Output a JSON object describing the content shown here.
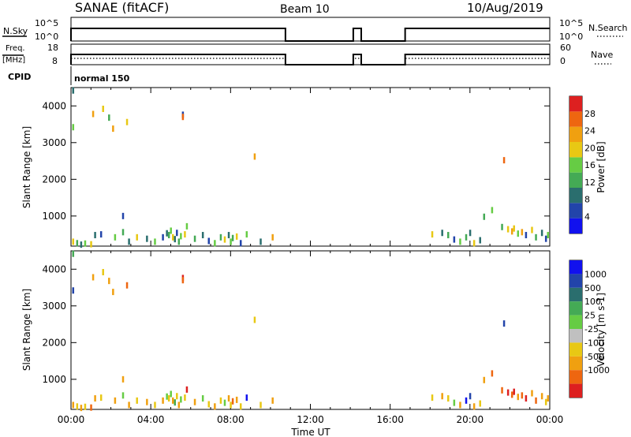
{
  "header": {
    "station": "SANAE (fitACF)",
    "beam": "Beam 10",
    "date": "10/Aug/2019"
  },
  "status_panels": {
    "nsky_label": "N.Sky",
    "nsky_ticks": [
      "10^5",
      "10^0"
    ],
    "nsearch_label": "N.Search",
    "nsearch_ticks": [
      "10^5",
      "10^0"
    ],
    "freq_label_1": "Freq.",
    "freq_label_2": "[MHz]",
    "freq_ticks": [
      "18",
      "8"
    ],
    "nave_label": "Nave",
    "nave_ticks": [
      "60",
      "0"
    ],
    "cpid_label": "CPID",
    "cpid_value": "normal 150",
    "data_gaps_hours": [
      [
        10.75,
        14.15
      ],
      [
        14.55,
        16.75
      ]
    ]
  },
  "colors": {
    "power_scale": [
      "#1111ee",
      "#2244aa",
      "#2a6e6e",
      "#44aa55",
      "#66cc44",
      "#e8c814",
      "#f0a010",
      "#ee6610",
      "#dd2020"
    ],
    "velocity_scale": [
      "#1111ee",
      "#2244aa",
      "#2a6e6e",
      "#44aa55",
      "#66cc44",
      "#c0c0c0",
      "#e8c814",
      "#f0a010",
      "#ee6610",
      "#dd2020"
    ]
  },
  "chart_data": [
    {
      "type": "scatter",
      "name": "power",
      "xlabel": "",
      "ylabel": "Slant Range [km]",
      "xlim": [
        0,
        24
      ],
      "ylim": [
        180,
        4500
      ],
      "yticks": [
        1000,
        2000,
        3000,
        4000
      ],
      "colorbar": {
        "label": "Power [dB]",
        "ticks": [
          4,
          8,
          12,
          16,
          20,
          24,
          28
        ],
        "range": [
          0,
          32
        ]
      },
      "points": [
        [
          0.1,
          4420,
          8
        ],
        [
          0.1,
          3420,
          16
        ],
        [
          1.1,
          3780,
          24
        ],
        [
          1.6,
          3920,
          20
        ],
        [
          1.9,
          3680,
          12
        ],
        [
          2.1,
          3380,
          24
        ],
        [
          2.8,
          3560,
          20
        ],
        [
          5.6,
          3760,
          4
        ],
        [
          5.6,
          3700,
          28
        ],
        [
          2.6,
          1000,
          4
        ],
        [
          9.2,
          2620,
          24
        ],
        [
          21.7,
          2520,
          28
        ],
        [
          21.1,
          1160,
          16
        ],
        [
          20.7,
          980,
          12
        ],
        [
          0.1,
          300,
          20
        ],
        [
          0.3,
          260,
          12
        ],
        [
          0.5,
          220,
          8
        ],
        [
          0.7,
          250,
          16
        ],
        [
          1.0,
          230,
          20
        ],
        [
          1.2,
          480,
          8
        ],
        [
          1.5,
          500,
          4
        ],
        [
          2.2,
          420,
          16
        ],
        [
          2.6,
          560,
          12
        ],
        [
          2.9,
          300,
          8
        ],
        [
          3.3,
          420,
          20
        ],
        [
          3.8,
          380,
          8
        ],
        [
          4.2,
          300,
          16
        ],
        [
          4.6,
          420,
          4
        ],
        [
          4.8,
          530,
          8
        ],
        [
          4.9,
          480,
          12
        ],
        [
          5.0,
          600,
          16
        ],
        [
          5.1,
          420,
          20
        ],
        [
          5.2,
          370,
          8
        ],
        [
          5.3,
          540,
          4
        ],
        [
          5.4,
          300,
          12
        ],
        [
          5.5,
          450,
          16
        ],
        [
          5.7,
          500,
          20
        ],
        [
          5.8,
          720,
          16
        ],
        [
          6.2,
          380,
          12
        ],
        [
          6.6,
          480,
          8
        ],
        [
          6.9,
          320,
          4
        ],
        [
          7.2,
          260,
          16
        ],
        [
          7.5,
          420,
          12
        ],
        [
          7.7,
          360,
          20
        ],
        [
          7.9,
          480,
          8
        ],
        [
          8.0,
          300,
          16
        ],
        [
          8.1,
          400,
          12
        ],
        [
          8.3,
          440,
          20
        ],
        [
          8.5,
          260,
          4
        ],
        [
          8.8,
          500,
          16
        ],
        [
          9.5,
          300,
          8
        ],
        [
          10.1,
          420,
          24
        ],
        [
          18.1,
          500,
          20
        ],
        [
          18.6,
          540,
          8
        ],
        [
          18.9,
          480,
          12
        ],
        [
          19.2,
          360,
          4
        ],
        [
          19.5,
          300,
          16
        ],
        [
          19.8,
          420,
          12
        ],
        [
          20.0,
          540,
          8
        ],
        [
          20.2,
          260,
          20
        ],
        [
          20.5,
          340,
          8
        ],
        [
          21.6,
          700,
          12
        ],
        [
          21.9,
          640,
          20
        ],
        [
          22.1,
          580,
          24
        ],
        [
          22.2,
          660,
          20
        ],
        [
          22.4,
          520,
          16
        ],
        [
          22.6,
          560,
          24
        ],
        [
          22.8,
          480,
          4
        ],
        [
          23.1,
          620,
          20
        ],
        [
          23.3,
          420,
          12
        ],
        [
          23.6,
          540,
          8
        ],
        [
          23.8,
          380,
          4
        ],
        [
          23.9,
          480,
          16
        ]
      ]
    },
    {
      "type": "scatter",
      "name": "velocity",
      "xlabel": "Time UT",
      "ylabel": "Slant Range [km]",
      "xlim": [
        0,
        24
      ],
      "ylim": [
        180,
        4500
      ],
      "xticks": [
        "00:00",
        "04:00",
        "08:00",
        "12:00",
        "16:00",
        "20:00",
        "00:00"
      ],
      "yticks": [
        1000,
        2000,
        3000,
        4000
      ],
      "colorbar": {
        "label": "Velocity [m s-1]",
        "ticks": [
          "1000",
          "500",
          "100",
          "25",
          "-25",
          "-100",
          "-500",
          "-1000"
        ]
      },
      "points": [
        [
          0.1,
          4420,
          3
        ],
        [
          0.1,
          3420,
          1
        ],
        [
          1.1,
          3780,
          7
        ],
        [
          1.6,
          3920,
          6
        ],
        [
          1.9,
          3680,
          7
        ],
        [
          2.1,
          3380,
          7
        ],
        [
          2.8,
          3560,
          8
        ],
        [
          5.6,
          3760,
          9
        ],
        [
          5.6,
          3700,
          8
        ],
        [
          2.6,
          1000,
          7
        ],
        [
          9.2,
          2620,
          6
        ],
        [
          21.7,
          2520,
          1
        ],
        [
          21.1,
          1160,
          8
        ],
        [
          20.7,
          980,
          7
        ],
        [
          0.1,
          300,
          7
        ],
        [
          0.3,
          260,
          6
        ],
        [
          0.5,
          220,
          7
        ],
        [
          0.7,
          250,
          6
        ],
        [
          1.0,
          230,
          8
        ],
        [
          1.2,
          480,
          7
        ],
        [
          1.5,
          500,
          6
        ],
        [
          2.2,
          420,
          7
        ],
        [
          2.6,
          560,
          4
        ],
        [
          2.9,
          300,
          7
        ],
        [
          3.3,
          420,
          6
        ],
        [
          3.8,
          380,
          7
        ],
        [
          4.2,
          300,
          6
        ],
        [
          4.6,
          420,
          7
        ],
        [
          4.8,
          530,
          4
        ],
        [
          4.9,
          480,
          6
        ],
        [
          5.0,
          600,
          4
        ],
        [
          5.1,
          420,
          7
        ],
        [
          5.2,
          370,
          3
        ],
        [
          5.3,
          540,
          6
        ],
        [
          5.4,
          300,
          7
        ],
        [
          5.5,
          450,
          4
        ],
        [
          5.7,
          500,
          6
        ],
        [
          5.8,
          720,
          9
        ],
        [
          6.2,
          380,
          7
        ],
        [
          6.6,
          480,
          4
        ],
        [
          6.9,
          320,
          6
        ],
        [
          7.2,
          260,
          7
        ],
        [
          7.5,
          420,
          6
        ],
        [
          7.7,
          360,
          4
        ],
        [
          7.9,
          480,
          7
        ],
        [
          8.0,
          300,
          6
        ],
        [
          8.1,
          400,
          8
        ],
        [
          8.3,
          440,
          7
        ],
        [
          8.5,
          260,
          6
        ],
        [
          8.8,
          500,
          0
        ],
        [
          9.5,
          300,
          6
        ],
        [
          10.1,
          420,
          7
        ],
        [
          18.1,
          500,
          6
        ],
        [
          18.6,
          540,
          7
        ],
        [
          18.9,
          480,
          6
        ],
        [
          19.2,
          360,
          4
        ],
        [
          19.5,
          300,
          7
        ],
        [
          19.8,
          420,
          0
        ],
        [
          20.0,
          540,
          1
        ],
        [
          20.2,
          260,
          7
        ],
        [
          20.5,
          340,
          6
        ],
        [
          21.6,
          700,
          8
        ],
        [
          21.9,
          640,
          9
        ],
        [
          22.1,
          580,
          8
        ],
        [
          22.2,
          660,
          9
        ],
        [
          22.4,
          520,
          7
        ],
        [
          22.6,
          560,
          8
        ],
        [
          22.8,
          480,
          9
        ],
        [
          23.1,
          620,
          7
        ],
        [
          23.3,
          420,
          8
        ],
        [
          23.6,
          540,
          7
        ],
        [
          23.8,
          380,
          6
        ],
        [
          23.9,
          480,
          7
        ]
      ]
    }
  ]
}
